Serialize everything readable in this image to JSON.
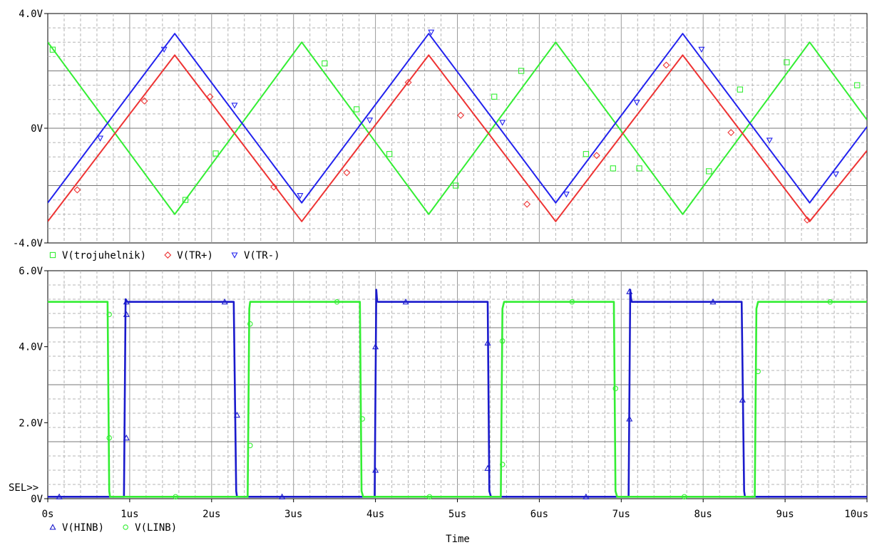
{
  "chart_data": [
    {
      "type": "line",
      "xlabel": "",
      "ylabel": "",
      "xlim": [
        0,
        10
      ],
      "ylim": [
        -4,
        4
      ],
      "yticks": [
        "4.0V",
        "0V",
        "-4.0V"
      ],
      "ytick_values": [
        4,
        0,
        -4
      ],
      "grid": true,
      "legend_position": "bottom-left",
      "series": [
        {
          "name": "V(trojuhelnik)",
          "color": "#33ee33",
          "marker": "square",
          "x": [
            0.0,
            1.55,
            3.1,
            4.65,
            6.2,
            7.75,
            9.3,
            10.0
          ],
          "y": [
            3.0,
            -3.0,
            3.0,
            -3.0,
            3.0,
            -3.0,
            3.0,
            0.29
          ],
          "marker_x": [
            0.06,
            1.68,
            2.05,
            3.38,
            3.77,
            4.17,
            4.98,
            5.45,
            5.78,
            6.57,
            6.9,
            7.22,
            8.07,
            8.45,
            9.02,
            9.88
          ],
          "marker_y": [
            2.74,
            -2.5,
            -0.88,
            2.26,
            0.66,
            -0.9,
            -2.0,
            1.1,
            2.0,
            -0.9,
            -1.4,
            -1.4,
            -1.5,
            1.35,
            2.3,
            1.5
          ]
        },
        {
          "name": "V(TR+)",
          "color": "#ee3333",
          "marker": "diamond",
          "x": [
            0.0,
            1.55,
            3.1,
            4.65,
            6.2,
            7.75,
            9.3,
            10.0
          ],
          "y": [
            -3.25,
            2.55,
            -3.25,
            2.55,
            -3.25,
            2.55,
            -3.25,
            -0.78
          ],
          "marker_x": [
            0.36,
            1.18,
            1.98,
            2.76,
            3.65,
            4.4,
            5.04,
            5.85,
            6.7,
            7.55,
            8.34,
            9.27
          ],
          "marker_y": [
            -2.15,
            0.95,
            1.1,
            -2.05,
            -1.55,
            1.6,
            0.45,
            -2.65,
            -0.95,
            2.2,
            -0.15,
            -3.2
          ]
        },
        {
          "name": "V(TR-)",
          "color": "#2222ee",
          "marker": "triangle-down",
          "x": [
            0.0,
            1.55,
            3.1,
            4.65,
            6.2,
            7.75,
            9.3,
            10.0
          ],
          "y": [
            -2.6,
            3.3,
            -2.6,
            3.3,
            -2.6,
            3.3,
            -2.6,
            0.05
          ],
          "marker_x": [
            0.64,
            1.42,
            2.28,
            3.08,
            3.93,
            4.68,
            5.55,
            6.33,
            7.19,
            7.98,
            8.81,
            9.62
          ],
          "marker_y": [
            -0.35,
            2.75,
            0.8,
            -2.35,
            0.28,
            3.35,
            0.2,
            -2.3,
            0.9,
            2.75,
            -0.42,
            -1.6
          ]
        }
      ]
    },
    {
      "type": "line",
      "xlabel": "Time",
      "ylabel": "",
      "xlim": [
        0,
        10
      ],
      "ylim": [
        0,
        6
      ],
      "xticks": [
        "0s",
        "1us",
        "2us",
        "3us",
        "4us",
        "5us",
        "6us",
        "7us",
        "8us",
        "9us",
        "10us"
      ],
      "xtick_values": [
        0,
        1,
        2,
        3,
        4,
        5,
        6,
        7,
        8,
        9,
        10
      ],
      "yticks": [
        "6.0V",
        "4.0V",
        "2.0V",
        "0V"
      ],
      "ytick_values": [
        6,
        4,
        2,
        0
      ],
      "grid": true,
      "legend_position": "bottom-left",
      "annotation": "SEL>>",
      "series": [
        {
          "name": "V(HINB)",
          "color": "#1a1acc",
          "marker": "triangle-up",
          "x": [
            0.0,
            0.93,
            0.95,
            0.96,
            0.97,
            2.27,
            2.3,
            2.31,
            3.99,
            4.01,
            4.02,
            4.03,
            5.37,
            5.39,
            5.41,
            7.09,
            7.11,
            7.12,
            7.13,
            8.47,
            8.5,
            8.51,
            10.0
          ],
          "y": [
            0.05,
            0.05,
            5.25,
            5.2,
            5.18,
            5.18,
            0.2,
            0.05,
            0.05,
            5.5,
            5.2,
            5.18,
            5.18,
            0.2,
            0.05,
            0.05,
            5.5,
            5.25,
            5.18,
            5.18,
            0.2,
            0.05,
            0.05
          ],
          "marker_x": [
            0.14,
            0.96,
            0.96,
            0.96,
            2.16,
            2.31,
            2.86,
            4.0,
            4.0,
            4.37,
            5.37,
            5.37,
            6.57,
            7.1,
            7.1,
            8.12,
            8.48
          ],
          "marker_y": [
            0.05,
            1.6,
            4.85,
            5.18,
            5.18,
            2.2,
            0.05,
            0.75,
            4.0,
            5.18,
            0.8,
            4.1,
            0.05,
            2.1,
            5.45,
            5.18,
            2.6
          ]
        },
        {
          "name": "V(LINB)",
          "color": "#33ee33",
          "marker": "circle",
          "x": [
            0.0,
            0.73,
            0.75,
            0.76,
            2.44,
            2.46,
            2.47,
            3.81,
            3.83,
            3.85,
            5.53,
            5.55,
            5.57,
            6.91,
            6.93,
            6.95,
            8.63,
            8.65,
            8.67,
            10.0
          ],
          "y": [
            5.18,
            5.18,
            0.2,
            0.05,
            0.05,
            5.0,
            5.18,
            5.18,
            0.2,
            0.05,
            0.05,
            5.0,
            5.18,
            5.18,
            0.2,
            0.05,
            0.05,
            5.0,
            5.18,
            5.18
          ],
          "marker_x": [
            0.75,
            0.75,
            1.56,
            2.47,
            2.47,
            3.53,
            3.84,
            4.66,
            5.55,
            5.55,
            6.4,
            6.93,
            7.77,
            8.67,
            9.55
          ],
          "marker_y": [
            1.6,
            4.85,
            0.05,
            1.4,
            4.6,
            5.18,
            2.1,
            0.05,
            0.9,
            4.15,
            5.18,
            2.9,
            0.05,
            3.35,
            5.18
          ]
        }
      ]
    }
  ]
}
